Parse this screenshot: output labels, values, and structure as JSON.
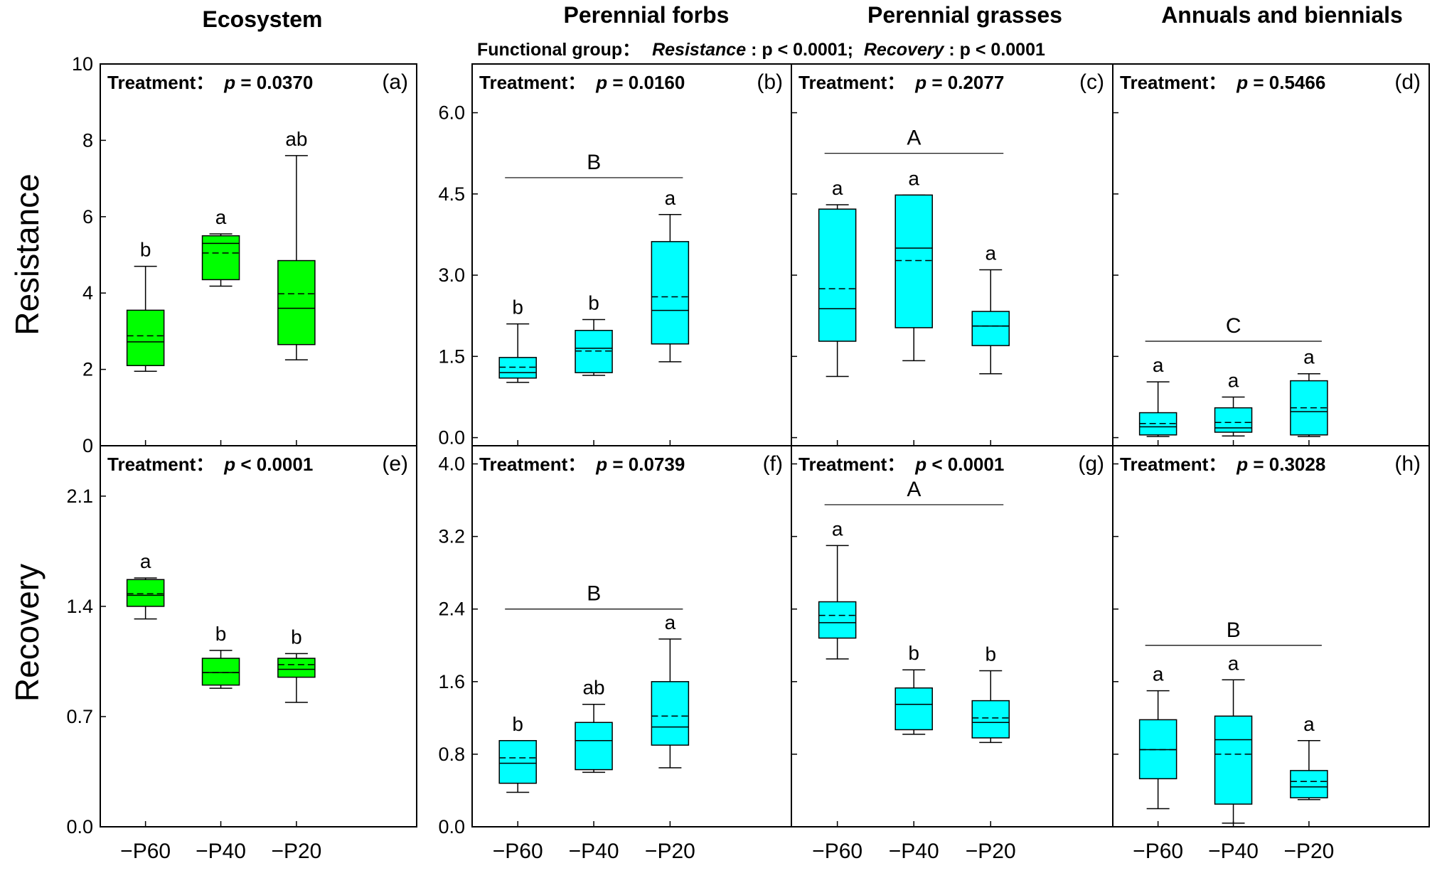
{
  "column_titles": [
    "Ecosystem",
    "Perennial forbs",
    "Perennial grasses",
    "Annuals and biennials"
  ],
  "functional_group": {
    "prefix": "Functional group：",
    "resistance_word": "Resistance",
    "resistance_text": ": p < 0.0001;",
    "recovery_word": "Recovery",
    "recovery_text": ": p < 0.0001"
  },
  "row_labels": [
    "Resistance",
    "Recovery"
  ],
  "treatment_prefix": "Treatment：",
  "x_categories": [
    "−P60",
    "−P40",
    "−P20"
  ],
  "colors": {
    "ecosystem_fill": "#00ff00",
    "group_fill": "#00ffff",
    "stroke": "#000000"
  },
  "chart_data": [
    {
      "type": "box",
      "panel": "(a)",
      "row": "Resistance",
      "column": "Ecosystem",
      "treatment_p": "p = 0.0370",
      "ylim": [
        0,
        10
      ],
      "yticks": [
        0,
        2,
        4,
        6,
        8,
        10
      ],
      "ytick_labels": [
        "0",
        "2",
        "4",
        "6",
        "8",
        "10"
      ],
      "categories": [
        "−P60",
        "−P40",
        "−P20"
      ],
      "boxes": [
        {
          "whisker_low": 1.95,
          "q1": 2.1,
          "median": 2.72,
          "mean": 2.88,
          "q3": 3.55,
          "whisker_high": 4.7,
          "letter": "b"
        },
        {
          "whisker_low": 4.18,
          "q1": 4.35,
          "median": 5.3,
          "mean": 5.05,
          "q3": 5.5,
          "whisker_high": 5.55,
          "letter": "a"
        },
        {
          "whisker_low": 2.25,
          "q1": 2.65,
          "median": 3.6,
          "mean": 3.98,
          "q3": 4.85,
          "whisker_high": 7.6,
          "letter": "ab"
        }
      ]
    },
    {
      "type": "box",
      "panel": "(b)",
      "row": "Resistance",
      "column": "Perennial forbs",
      "treatment_p": "p = 0.0160",
      "ylim": [
        -0.15,
        6.9
      ],
      "yticks": [
        0,
        1.5,
        3,
        4.5,
        6
      ],
      "ytick_labels": [
        "0.0",
        "1.5",
        "3.0",
        "4.5",
        "6.0"
      ],
      "categories": [
        "−P60",
        "−P40",
        "−P20"
      ],
      "group_letter": "B",
      "group_line_y": 4.8,
      "boxes": [
        {
          "whisker_low": 1.02,
          "q1": 1.1,
          "median": 1.2,
          "mean": 1.3,
          "q3": 1.48,
          "whisker_high": 2.1,
          "letter": "b"
        },
        {
          "whisker_low": 1.15,
          "q1": 1.2,
          "median": 1.65,
          "mean": 1.6,
          "q3": 1.98,
          "whisker_high": 2.18,
          "letter": "b"
        },
        {
          "whisker_low": 1.4,
          "q1": 1.73,
          "median": 2.35,
          "mean": 2.6,
          "q3": 3.62,
          "whisker_high": 4.12,
          "letter": "a"
        }
      ]
    },
    {
      "type": "box",
      "panel": "(c)",
      "row": "Resistance",
      "column": "Perennial grasses",
      "treatment_p": "p = 0.2077",
      "ylim": [
        -0.15,
        6.9
      ],
      "yticks": [
        0,
        1.5,
        3,
        4.5,
        6
      ],
      "ytick_labels": [],
      "categories": [
        "−P60",
        "−P40",
        "−P20"
      ],
      "group_letter": "A",
      "group_line_y": 5.25,
      "boxes": [
        {
          "whisker_low": 1.13,
          "q1": 1.78,
          "median": 2.38,
          "mean": 2.75,
          "q3": 4.22,
          "whisker_high": 4.3,
          "letter": "a"
        },
        {
          "whisker_low": 1.42,
          "q1": 2.03,
          "median": 3.5,
          "mean": 3.27,
          "q3": 4.48,
          "whisker_high": 4.48,
          "letter": "a"
        },
        {
          "whisker_low": 1.18,
          "q1": 1.7,
          "median": 2.06,
          "mean": 2.06,
          "q3": 2.33,
          "whisker_high": 3.1,
          "letter": "a"
        }
      ]
    },
    {
      "type": "box",
      "panel": "(d)",
      "row": "Resistance",
      "column": "Annuals and biennials",
      "treatment_p": "p = 0.5466",
      "ylim": [
        -0.15,
        6.9
      ],
      "yticks": [
        0,
        1.5,
        3,
        4.5,
        6
      ],
      "ytick_labels": [],
      "categories": [
        "−P60",
        "−P40",
        "−P20"
      ],
      "group_letter": "C",
      "group_line_y": 1.78,
      "boxes": [
        {
          "whisker_low": 0.02,
          "q1": 0.05,
          "median": 0.2,
          "mean": 0.26,
          "q3": 0.46,
          "whisker_high": 1.03,
          "letter": "a"
        },
        {
          "whisker_low": 0.03,
          "q1": 0.1,
          "median": 0.18,
          "mean": 0.28,
          "q3": 0.55,
          "whisker_high": 0.75,
          "letter": "a"
        },
        {
          "whisker_low": 0.02,
          "q1": 0.05,
          "median": 0.48,
          "mean": 0.55,
          "q3": 1.05,
          "whisker_high": 1.18,
          "letter": "a"
        }
      ]
    },
    {
      "type": "box",
      "panel": "(e)",
      "row": "Recovery",
      "column": "Ecosystem",
      "treatment_p": "p < 0.0001",
      "ylim": [
        0,
        2.42
      ],
      "yticks": [
        0,
        0.7,
        1.4,
        2.1
      ],
      "ytick_labels": [
        "0.0",
        "0.7",
        "1.4",
        "2.1"
      ],
      "categories": [
        "−P60",
        "−P40",
        "−P20"
      ],
      "boxes": [
        {
          "whisker_low": 1.32,
          "q1": 1.4,
          "median": 1.47,
          "mean": 1.48,
          "q3": 1.57,
          "whisker_high": 1.58,
          "letter": "a"
        },
        {
          "whisker_low": 0.88,
          "q1": 0.9,
          "median": 0.98,
          "mean": 0.98,
          "q3": 1.07,
          "whisker_high": 1.12,
          "letter": "b"
        },
        {
          "whisker_low": 0.79,
          "q1": 0.95,
          "median": 1.0,
          "mean": 1.03,
          "q3": 1.07,
          "whisker_high": 1.1,
          "letter": "b"
        }
      ]
    },
    {
      "type": "box",
      "panel": "(f)",
      "row": "Recovery",
      "column": "Perennial forbs",
      "treatment_p": "p = 0.0739",
      "ylim": [
        0,
        4.2
      ],
      "yticks": [
        0,
        0.8,
        1.6,
        2.4,
        3.2,
        4.0
      ],
      "ytick_labels": [
        "0.0",
        "0.8",
        "1.6",
        "2.4",
        "3.2",
        "4.0"
      ],
      "categories": [
        "−P60",
        "−P40",
        "−P20"
      ],
      "group_letter": "B",
      "group_line_y": 2.4,
      "boxes": [
        {
          "whisker_low": 0.38,
          "q1": 0.48,
          "median": 0.7,
          "mean": 0.76,
          "q3": 0.95,
          "whisker_high": 0.95,
          "letter": "b"
        },
        {
          "whisker_low": 0.6,
          "q1": 0.63,
          "median": 0.95,
          "mean": 0.95,
          "q3": 1.15,
          "whisker_high": 1.35,
          "letter": "ab"
        },
        {
          "whisker_low": 0.65,
          "q1": 0.9,
          "median": 1.1,
          "mean": 1.22,
          "q3": 1.6,
          "whisker_high": 2.07,
          "letter": "a"
        }
      ]
    },
    {
      "type": "box",
      "panel": "(g)",
      "row": "Recovery",
      "column": "Perennial grasses",
      "treatment_p": "p < 0.0001",
      "ylim": [
        0,
        4.2
      ],
      "yticks": [
        0,
        0.8,
        1.6,
        2.4,
        3.2,
        4.0
      ],
      "ytick_labels": [],
      "categories": [
        "−P60",
        "−P40",
        "−P20"
      ],
      "group_letter": "A",
      "group_line_y": 3.55,
      "boxes": [
        {
          "whisker_low": 1.85,
          "q1": 2.08,
          "median": 2.25,
          "mean": 2.33,
          "q3": 2.48,
          "whisker_high": 3.1,
          "letter": "a"
        },
        {
          "whisker_low": 1.02,
          "q1": 1.07,
          "median": 1.35,
          "mean": 1.35,
          "q3": 1.53,
          "whisker_high": 1.73,
          "letter": "b"
        },
        {
          "whisker_low": 0.93,
          "q1": 0.98,
          "median": 1.15,
          "mean": 1.2,
          "q3": 1.39,
          "whisker_high": 1.72,
          "letter": "b"
        }
      ]
    },
    {
      "type": "box",
      "panel": "(h)",
      "row": "Recovery",
      "column": "Annuals and biennials",
      "treatment_p": "p = 0.3028",
      "ylim": [
        0,
        4.2
      ],
      "yticks": [
        0.8,
        1.6,
        2.4,
        3.2,
        4.0
      ],
      "ytick_labels": [],
      "categories": [
        "−P60",
        "−P40",
        "−P20"
      ],
      "group_letter": "B",
      "group_line_y": 2.0,
      "boxes": [
        {
          "whisker_low": 0.2,
          "q1": 0.53,
          "median": 0.85,
          "mean": 0.85,
          "q3": 1.18,
          "whisker_high": 1.5,
          "letter": "a"
        },
        {
          "whisker_low": 0.04,
          "q1": 0.25,
          "median": 0.96,
          "mean": 0.8,
          "q3": 1.22,
          "whisker_high": 1.62,
          "letter": "a"
        },
        {
          "whisker_low": 0.3,
          "q1": 0.32,
          "median": 0.44,
          "mean": 0.5,
          "q3": 0.62,
          "whisker_high": 0.95,
          "letter": "a"
        }
      ]
    }
  ]
}
